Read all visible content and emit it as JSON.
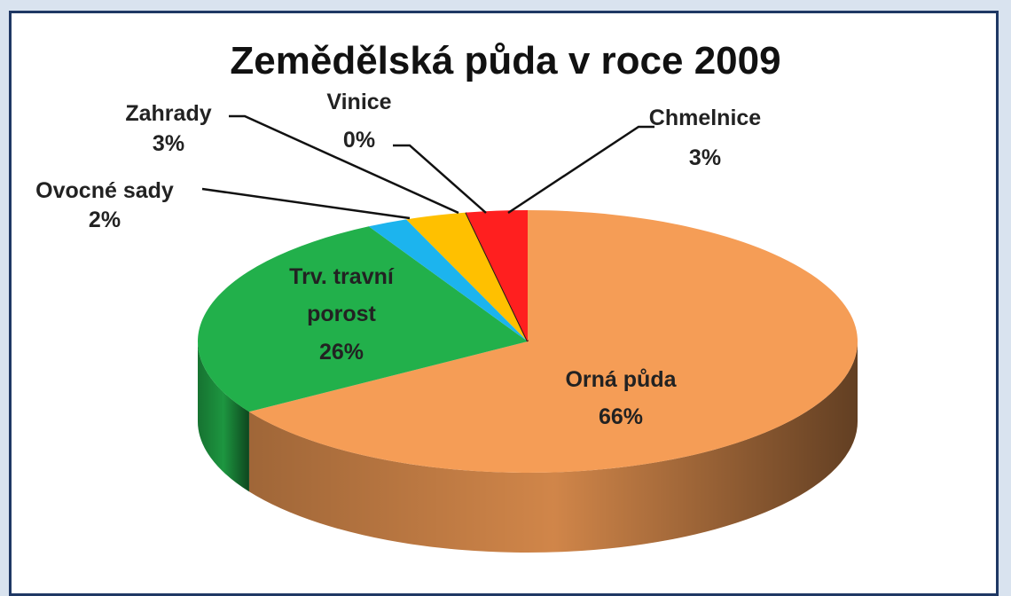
{
  "chart_data": {
    "type": "pie",
    "title": "Zemědělská půda v roce 2009",
    "categories": [
      "Orná půda",
      "Trv. travní porost",
      "Ovocné sady",
      "Zahrady",
      "Vinice",
      "Chmelnice"
    ],
    "values": [
      66,
      26,
      2,
      3,
      0,
      3
    ],
    "value_labels": [
      "66%",
      "26%",
      "2%",
      "3%",
      "0%",
      "3%"
    ],
    "colors": [
      "#f59d56",
      "#22b04b",
      "#1cb4ee",
      "#ffc000",
      "#1a1a1a",
      "#ff1f1f"
    ]
  }
}
